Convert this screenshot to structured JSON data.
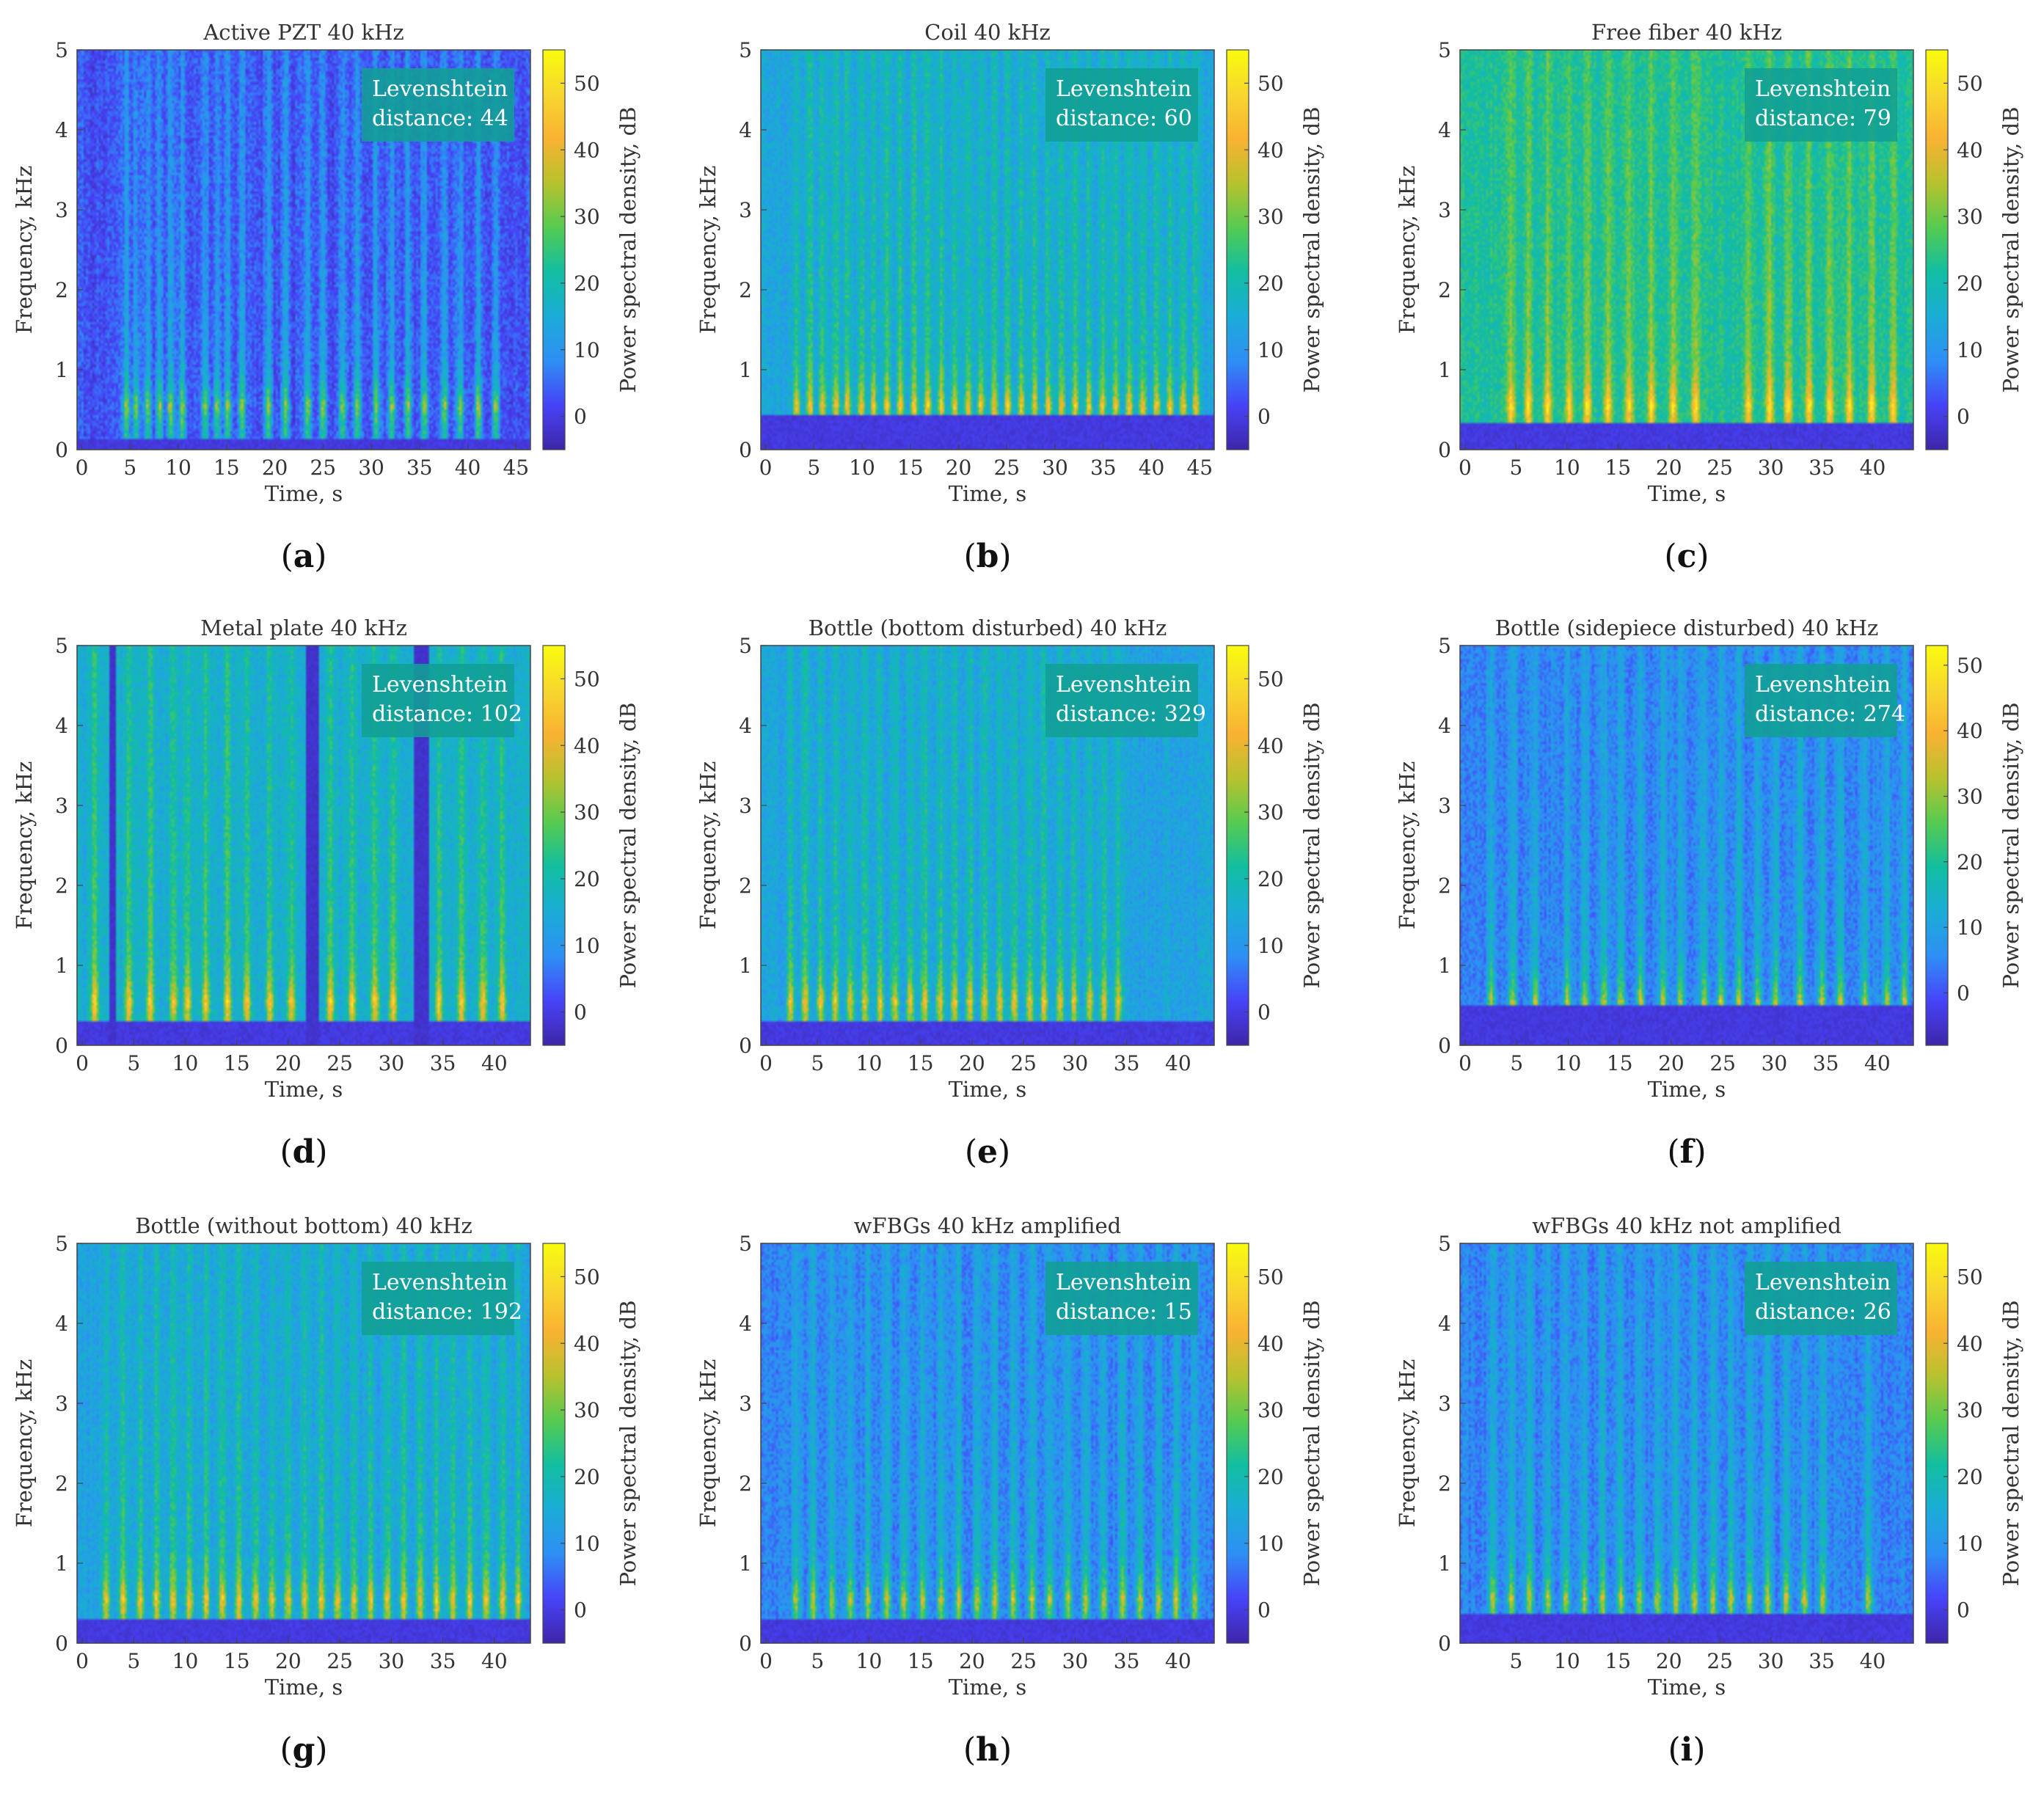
{
  "colors": {
    "colormap": [
      "#3e26a8",
      "#4743f8",
      "#2e8ff5",
      "#1bacd7",
      "#11bea1",
      "#55cb51",
      "#b7c22e",
      "#f9b232",
      "#f8d72e",
      "#f9fb0e"
    ],
    "label_box": "#119f95"
  },
  "chart_data": [
    {
      "type": "heatmap",
      "title": "Active PZT 40 kHz",
      "sublabel": "a",
      "xlabel": "Time, s",
      "ylabel": "Frequency, kHz",
      "colorbar_label": "Power spectral density, dB",
      "xlim": [
        -0.5,
        46.5
      ],
      "ylim": [
        0,
        5
      ],
      "xticks": [
        0,
        5,
        10,
        15,
        20,
        25,
        30,
        35,
        40,
        45
      ],
      "yticks": [
        0,
        1,
        2,
        3,
        4,
        5
      ],
      "clim": [
        -5,
        55
      ],
      "cticks": [
        0,
        10,
        20,
        30,
        40,
        50
      ],
      "annotation_lines": [
        "Levenshtein",
        "distance: 44"
      ],
      "levenshtein_distance": 44,
      "background_level": 1,
      "band_low_khz": 0.12,
      "burst_times": [
        4.6,
        5.6,
        6.8,
        8.1,
        9.2,
        10.4,
        12.8,
        14.0,
        15.1,
        16.6,
        19.3,
        21.1,
        23.4,
        25.0,
        27.0,
        28.6,
        30.5,
        32.1,
        33.8,
        35.5,
        37.6,
        39.2,
        41.1,
        42.9
      ]
    },
    {
      "type": "heatmap",
      "title": "Coil 40 kHz",
      "sublabel": "b",
      "xlabel": "Time, s",
      "ylabel": "Frequency, kHz",
      "colorbar_label": "Power spectral density, dB",
      "xlim": [
        -0.5,
        46.5
      ],
      "ylim": [
        0,
        5
      ],
      "xticks": [
        0,
        5,
        10,
        15,
        20,
        25,
        30,
        35,
        40,
        45
      ],
      "yticks": [
        0,
        1,
        2,
        3,
        4,
        5
      ],
      "clim": [
        -5,
        55
      ],
      "cticks": [
        0,
        10,
        20,
        30,
        40,
        50
      ],
      "annotation_lines": [
        "Levenshtein",
        "distance: 60"
      ],
      "levenshtein_distance": 60,
      "background_level": 12,
      "band_low_khz": 0.45,
      "burst_times": [
        3.2,
        4.6,
        5.9,
        7.3,
        8.5,
        9.9,
        11.2,
        12.6,
        14.0,
        15.4,
        16.8,
        18.2,
        19.6,
        21.0,
        22.3,
        23.7,
        25.1,
        26.5,
        27.9,
        29.3,
        30.7,
        32.1,
        33.5,
        34.9,
        36.3,
        37.7,
        39.1,
        40.5,
        41.9,
        43.3,
        44.6
      ]
    },
    {
      "type": "heatmap",
      "title": "Free fiber 40 kHz",
      "sublabel": "c",
      "xlabel": "Time, s",
      "ylabel": "Frequency, kHz",
      "colorbar_label": "Power spectral density, dB",
      "xlim": [
        -0.5,
        44
      ],
      "ylim": [
        0,
        5
      ],
      "xticks": [
        0,
        5,
        10,
        15,
        20,
        25,
        30,
        35,
        40
      ],
      "yticks": [
        0,
        1,
        2,
        3,
        4,
        5
      ],
      "clim": [
        -5,
        55
      ],
      "cticks": [
        0,
        10,
        20,
        30,
        40,
        50
      ],
      "annotation_lines": [
        "Levenshtein",
        "distance: 79"
      ],
      "levenshtein_distance": 79,
      "background_level": 20,
      "band_low_khz": 0.32,
      "burst_times": [
        4.5,
        6.2,
        8.1,
        10.2,
        12.0,
        14.0,
        16.1,
        18.3,
        20.4,
        22.6,
        27.8,
        29.9,
        31.7,
        33.8,
        35.8,
        37.7,
        39.9,
        42.0
      ]
    },
    {
      "type": "heatmap",
      "title": "Metal plate 40 kHz",
      "sublabel": "d",
      "xlabel": "Time, s",
      "ylabel": "Frequency, kHz",
      "colorbar_label": "Power spectral density, dB",
      "xlim": [
        -0.5,
        43.5
      ],
      "ylim": [
        0,
        5
      ],
      "xticks": [
        0,
        5,
        10,
        15,
        20,
        25,
        30,
        35,
        40
      ],
      "yticks": [
        0,
        1,
        2,
        3,
        4,
        5
      ],
      "clim": [
        -5,
        55
      ],
      "cticks": [
        0,
        10,
        20,
        30,
        40,
        50
      ],
      "annotation_lines": [
        "Levenshtein",
        "distance: 102"
      ],
      "levenshtein_distance": 102,
      "background_level": 14,
      "band_low_khz": 0.3,
      "gap_intervals": [
        [
          2.6,
          3.3
        ],
        [
          21.7,
          22.9
        ],
        [
          32.2,
          33.6
        ]
      ],
      "burst_times": [
        1.2,
        4.5,
        6.6,
        8.9,
        10.2,
        12.0,
        14.1,
        16.0,
        18.2,
        20.3,
        24.1,
        26.2,
        28.4,
        30.2,
        34.6,
        36.8,
        38.9,
        40.8
      ]
    },
    {
      "type": "heatmap",
      "title": "Bottle (bottom disturbed) 40 kHz",
      "sublabel": "e",
      "xlabel": "Time, s",
      "ylabel": "Frequency, kHz",
      "colorbar_label": "Power spectral density, dB",
      "xlim": [
        -0.5,
        43.5
      ],
      "ylim": [
        0,
        5
      ],
      "xticks": [
        0,
        5,
        10,
        15,
        20,
        25,
        30,
        35,
        40
      ],
      "yticks": [
        0,
        1,
        2,
        3,
        4,
        5
      ],
      "clim": [
        -5,
        55
      ],
      "cticks": [
        0,
        10,
        20,
        30,
        40,
        50
      ],
      "annotation_lines": [
        "Levenshtein",
        "distance: 329"
      ],
      "levenshtein_distance": 329,
      "background_level": 11,
      "band_low_khz": 0.3,
      "burst_times": [
        2.4,
        3.8,
        5.3,
        6.7,
        8.2,
        9.6,
        11.1,
        12.5,
        14.0,
        15.4,
        16.9,
        18.3,
        19.8,
        21.2,
        22.7,
        24.1,
        25.6,
        27.0,
        28.5,
        29.9,
        31.4,
        32.8,
        34.2
      ]
    },
    {
      "type": "heatmap",
      "title": "Bottle (sidepiece disturbed) 40 kHz",
      "sublabel": "f",
      "xlabel": "Time, s",
      "ylabel": "Frequency, kHz",
      "colorbar_label": "Power spectral density, dB",
      "xlim": [
        -0.5,
        43.5
      ],
      "ylim": [
        0,
        5
      ],
      "xticks": [
        0,
        5,
        10,
        15,
        20,
        25,
        30,
        35,
        40
      ],
      "yticks": [
        0,
        1,
        2,
        3,
        4,
        5
      ],
      "clim": [
        -8,
        53
      ],
      "cticks": [
        0,
        10,
        20,
        30,
        40,
        50
      ],
      "annotation_lines": [
        "Levenshtein",
        "distance: 274"
      ],
      "levenshtein_distance": 274,
      "background_level": 3,
      "band_low_khz": 0.5,
      "burst_times": [
        2.5,
        4.6,
        6.8,
        9.9,
        11.6,
        13.5,
        15.1,
        17.0,
        19.2,
        20.9,
        23.2,
        24.8,
        26.6,
        28.4,
        30.1,
        32.5,
        34.6,
        36.4,
        38.8,
        40.9,
        42.6
      ]
    },
    {
      "type": "heatmap",
      "title": "Bottle (without bottom) 40 kHz",
      "sublabel": "g",
      "xlabel": "Time, s",
      "ylabel": "Frequency, kHz",
      "colorbar_label": "Power spectral density, dB",
      "xlim": [
        -0.5,
        43.5
      ],
      "ylim": [
        0,
        5
      ],
      "xticks": [
        0,
        5,
        10,
        15,
        20,
        25,
        30,
        35,
        40
      ],
      "yticks": [
        0,
        1,
        2,
        3,
        4,
        5
      ],
      "clim": [
        -5,
        55
      ],
      "cticks": [
        0,
        10,
        20,
        30,
        40,
        50
      ],
      "annotation_lines": [
        "Levenshtein",
        "distance: 192"
      ],
      "levenshtein_distance": 192,
      "background_level": 11,
      "band_low_khz": 0.3,
      "burst_times": [
        2.3,
        4.0,
        5.6,
        7.2,
        8.8,
        10.4,
        12.0,
        13.6,
        15.2,
        16.8,
        18.4,
        20.0,
        21.6,
        23.2,
        24.8,
        26.4,
        28.0,
        29.6,
        31.2,
        32.8,
        34.4,
        36.0,
        37.6,
        39.2,
        40.8,
        42.3
      ]
    },
    {
      "type": "heatmap",
      "title": "wFBGs 40 kHz amplified",
      "sublabel": "h",
      "xlabel": "Time, s",
      "ylabel": "Frequency, kHz",
      "colorbar_label": "Power spectral density, dB",
      "xlim": [
        -0.5,
        43.5
      ],
      "ylim": [
        0,
        5
      ],
      "xticks": [
        0,
        5,
        10,
        15,
        20,
        25,
        30,
        35,
        40
      ],
      "yticks": [
        0,
        1,
        2,
        3,
        4,
        5
      ],
      "clim": [
        -5,
        55
      ],
      "cticks": [
        0,
        10,
        20,
        30,
        40,
        50
      ],
      "annotation_lines": [
        "Levenshtein",
        "distance: 15"
      ],
      "levenshtein_distance": 15,
      "background_level": 6,
      "band_low_khz": 0.3,
      "burst_times": [
        2.9,
        4.6,
        6.4,
        8.2,
        9.9,
        11.7,
        13.4,
        15.2,
        17.0,
        18.7,
        20.5,
        22.2,
        24.0,
        25.8,
        27.5,
        29.3,
        31.0,
        32.8,
        34.6,
        36.3,
        38.1,
        39.8,
        41.6
      ]
    },
    {
      "type": "heatmap",
      "title": "wFBGs 40 kHz not amplified",
      "sublabel": "i",
      "xlabel": "Time, s",
      "ylabel": "Frequency, kHz",
      "colorbar_label": "Power spectral density, dB",
      "xlim": [
        -0.5,
        44
      ],
      "ylim": [
        0,
        5
      ],
      "xticks": [
        5,
        10,
        15,
        20,
        25,
        30,
        35,
        40
      ],
      "yticks": [
        0,
        1,
        2,
        3,
        4,
        5
      ],
      "clim": [
        -5,
        55
      ],
      "cticks": [
        0,
        10,
        20,
        30,
        40,
        50
      ],
      "annotation_lines": [
        "Levenshtein",
        "distance: 26"
      ],
      "levenshtein_distance": 26,
      "background_level": 6,
      "band_low_khz": 0.35,
      "burst_times": [
        2.7,
        4.5,
        6.3,
        8.1,
        9.9,
        11.7,
        13.5,
        15.3,
        17.1,
        18.9,
        20.7,
        22.5,
        24.3,
        26.1,
        27.9,
        29.7,
        31.5,
        33.3,
        35.1,
        39.6
      ]
    }
  ]
}
